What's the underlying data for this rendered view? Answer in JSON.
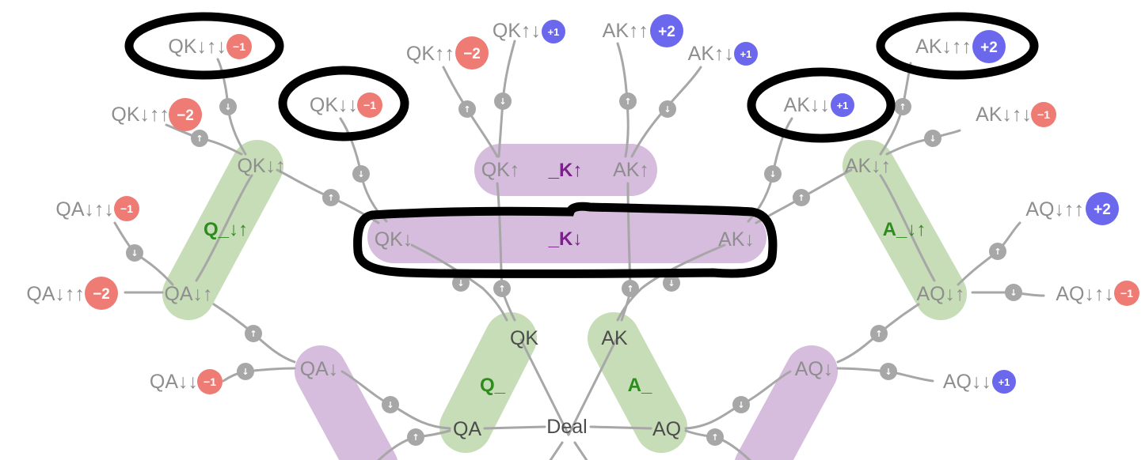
{
  "colors": {
    "green_band": "#c6ddb7",
    "purple_band": "#d6bcdd",
    "negative_badge": "#ee7b74",
    "positive_badge": "#6c68ee",
    "edge": "#a7a7a7",
    "annotation": "#000000"
  },
  "root_label": "Deal",
  "first_level": {
    "qa": "QA",
    "qk": "QK",
    "ak": "AK",
    "aq": "AQ"
  },
  "groups": {
    "q_blank": "Q_",
    "a_blank": "A_",
    "q_down_up": "Q_↓↑",
    "a_down_up": "A_↓↑",
    "k_up": "_K↑",
    "k_down": "_K↓"
  },
  "nodes": {
    "qa_down": "QA↓",
    "aq_down": "AQ↓",
    "qa_down_up": "QA↓↑",
    "qk_down_up": "QK↓↑",
    "aq_down_up": "AQ↓↑",
    "ak_down_up": "AK↓↑",
    "qk_down": "QK↓",
    "ak_down": "AK↓",
    "qk_up": "QK↑",
    "ak_up": "AK↑"
  },
  "terminals": {
    "qa_dd": {
      "label": "QA↓↓",
      "payoff": "−1"
    },
    "qa_dud": {
      "label": "QA↓↑↓",
      "payoff": "−1"
    },
    "qa_duu": {
      "label": "QA↓↑↑",
      "payoff": "−2"
    },
    "qk_duu": {
      "label": "QK↓↑↑",
      "payoff": "−2"
    },
    "qk_dud": {
      "label": "QK↓↑↓",
      "payoff": "−1"
    },
    "qk_dd": {
      "label": "QK↓↓",
      "payoff": "−1"
    },
    "qk_uu": {
      "label": "QK↑↑",
      "payoff": "−2"
    },
    "qk_ud": {
      "label": "QK↑↓",
      "payoff": "+1"
    },
    "ak_uu": {
      "label": "AK↑↑",
      "payoff": "+2"
    },
    "ak_ud": {
      "label": "AK↑↓",
      "payoff": "+1"
    },
    "ak_dd": {
      "label": "AK↓↓",
      "payoff": "+1"
    },
    "ak_duu": {
      "label": "AK↓↑↑",
      "payoff": "+2"
    },
    "ak_dud": {
      "label": "AK↓↑↓",
      "payoff": "−1"
    },
    "aq_duu": {
      "label": "AQ↓↑↑",
      "payoff": "+2"
    },
    "aq_dud": {
      "label": "AQ↓↑↓",
      "payoff": "−1"
    },
    "aq_dd": {
      "label": "AQ↓↓",
      "payoff": "+1"
    }
  },
  "arrow_glyphs": {
    "up": "↑",
    "down": "↓"
  }
}
